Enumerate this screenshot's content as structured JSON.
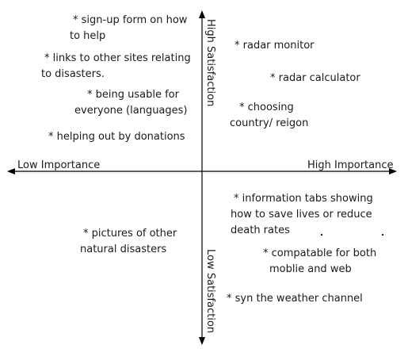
{
  "axes": {
    "horizontal_left": "Low Importance",
    "horizontal_right": "High Importance",
    "vertical_top": "High Satisfaction",
    "vertical_bottom": "Low Satisfaction",
    "line_color": "#000000"
  },
  "quadrants": {
    "low_importance_high_satisfaction": [
      {
        "lines": [
          "* sign-up form on how",
          "to help"
        ]
      },
      {
        "lines": [
          "* links to other sites relating",
          "to disasters."
        ]
      },
      {
        "lines": [
          "* being usable for",
          "everyone (languages)"
        ]
      },
      {
        "lines": [
          "* helping out by donations"
        ]
      }
    ],
    "high_importance_high_satisfaction": [
      {
        "lines": [
          "* radar monitor"
        ]
      },
      {
        "lines": [
          "* radar calculator"
        ]
      },
      {
        "lines": [
          "* choosing",
          "country/ reigon"
        ]
      }
    ],
    "low_importance_low_satisfaction": [
      {
        "lines": [
          "* pictures of other",
          "natural disasters"
        ]
      }
    ],
    "high_importance_low_satisfaction": [
      {
        "lines": [
          "* information tabs showing",
          "how to save lives or reduce",
          "death rates"
        ]
      },
      {
        "lines": [
          "* compatable for both",
          "moblie and web"
        ]
      },
      {
        "lines": [
          "* syn the weather channel"
        ]
      }
    ]
  }
}
